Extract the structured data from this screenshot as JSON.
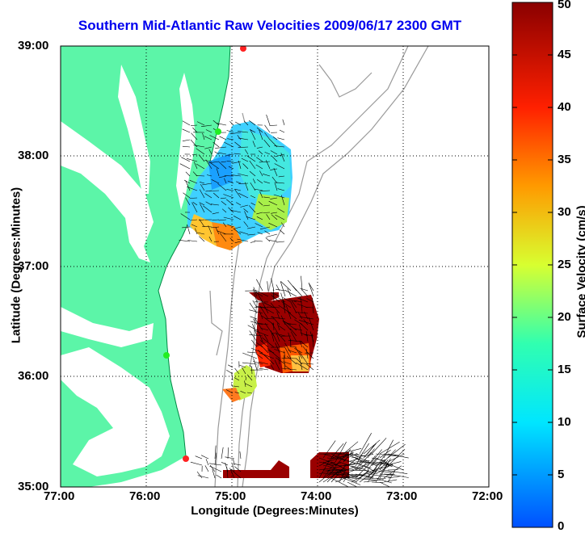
{
  "title": "Southern Mid-Atlantic Raw Velocities 2009/06/17 2300 GMT",
  "xlabel": "Longitude (Degrees:Minutes)",
  "ylabel": "Latitude (Degrees:Minutes)",
  "colorbar": {
    "label": "Surface Velocity (cm/s)",
    "ticks": [
      "0",
      "5",
      "10",
      "15",
      "20",
      "25",
      "30",
      "35",
      "40",
      "45",
      "50"
    ],
    "min": 0,
    "max": 50
  },
  "x_ticks": [
    "77:00",
    "76:00",
    "75:00",
    "74:00",
    "73:00",
    "72:00"
  ],
  "y_ticks": [
    "35:00",
    "36:00",
    "37:00",
    "38:00",
    "39:00"
  ],
  "colors": {
    "land": "#5cf5a8",
    "contour": "#9a9a9a",
    "title": "#0000ee",
    "station": "#ff2222"
  }
}
